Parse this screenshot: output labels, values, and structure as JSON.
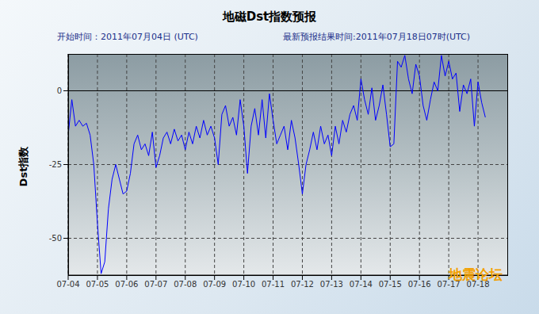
{
  "chart_data": {
    "type": "line",
    "title": "地磁Dst指数预报",
    "subtitle": "开始时间：2011年07月04日 (UTC)",
    "subtitle_right": "最新预报结果时间:2011年07月18日07时(UTC)",
    "y_label": "Dst指数",
    "annotation": "地震论坛",
    "x": [
      0,
      3,
      6,
      9,
      12,
      15,
      18,
      21,
      24,
      27,
      30,
      33,
      36,
      39,
      42,
      45,
      48,
      51,
      54,
      57,
      60,
      63,
      66,
      69,
      72,
      75,
      78,
      81,
      84,
      87,
      90,
      93,
      96,
      99,
      102,
      105,
      108,
      111,
      114,
      117,
      120,
      123,
      126,
      129,
      132,
      135,
      138,
      141,
      144,
      147,
      150,
      153,
      156,
      159,
      162,
      165,
      168,
      171,
      174,
      177,
      180,
      183,
      186,
      189,
      192,
      195,
      198,
      201,
      204,
      207,
      210,
      213,
      216,
      219,
      222,
      225,
      228,
      231,
      234,
      237,
      240,
      243,
      246,
      249,
      252,
      255,
      258,
      261,
      264,
      267,
      270,
      273,
      276,
      279,
      282,
      285,
      288,
      291,
      294,
      297,
      300,
      303,
      306,
      309,
      312,
      315,
      318,
      321,
      324,
      327,
      330,
      333,
      336,
      339,
      342
    ],
    "series": [
      {
        "name": "Dst",
        "color": "#0000ff",
        "values": [
          -15,
          -3,
          -12,
          -10,
          -12,
          -11,
          -15,
          -25,
          -45,
          -62,
          -58,
          -40,
          -30,
          -25,
          -30,
          -35,
          -34,
          -28,
          -18,
          -15,
          -20,
          -18,
          -22,
          -14,
          -26,
          -22,
          -16,
          -14,
          -18,
          -13,
          -17,
          -15,
          -20,
          -14,
          -18,
          -12,
          -16,
          -10,
          -15,
          -12,
          -16,
          -25,
          -8,
          -5,
          -12,
          -9,
          -15,
          -3,
          -12,
          -28,
          -12,
          -6,
          -15,
          -3,
          -16,
          -1,
          -10,
          -18,
          -15,
          -12,
          -20,
          -10,
          -16,
          -25,
          -35,
          -25,
          -20,
          -14,
          -20,
          -12,
          -18,
          -15,
          -22,
          -12,
          -18,
          -10,
          -14,
          -8,
          -5,
          -10,
          4,
          -3,
          -8,
          1,
          -10,
          -5,
          2,
          -8,
          -19,
          -18,
          10,
          8,
          12,
          4,
          -1,
          9,
          5,
          -5,
          -10,
          -3,
          3,
          0,
          12,
          5,
          10,
          4,
          6,
          -7,
          2,
          -1,
          4,
          -12,
          3,
          -4,
          -9
        ]
      }
    ],
    "xlim": [
      0,
      360
    ],
    "xticks": [
      {
        "value": 0,
        "label": "07-04"
      },
      {
        "value": 24,
        "label": "07-05"
      },
      {
        "value": 48,
        "label": "07-06"
      },
      {
        "value": 72,
        "label": "07-07"
      },
      {
        "value": 96,
        "label": "07-08"
      },
      {
        "value": 120,
        "label": "07-09"
      },
      {
        "value": 144,
        "label": "07-10"
      },
      {
        "value": 168,
        "label": "07-11"
      },
      {
        "value": 192,
        "label": "07-12"
      },
      {
        "value": 216,
        "label": "07-13"
      },
      {
        "value": 240,
        "label": "07-14"
      },
      {
        "value": 264,
        "label": "07-15"
      },
      {
        "value": 288,
        "label": "07-16"
      },
      {
        "value": 312,
        "label": "07-17"
      },
      {
        "value": 336,
        "label": "07-18"
      }
    ],
    "ylim": [
      -62.5,
      12.5
    ],
    "yticks": [
      -50,
      -25,
      0
    ],
    "reference_line": 0,
    "grid": true
  }
}
